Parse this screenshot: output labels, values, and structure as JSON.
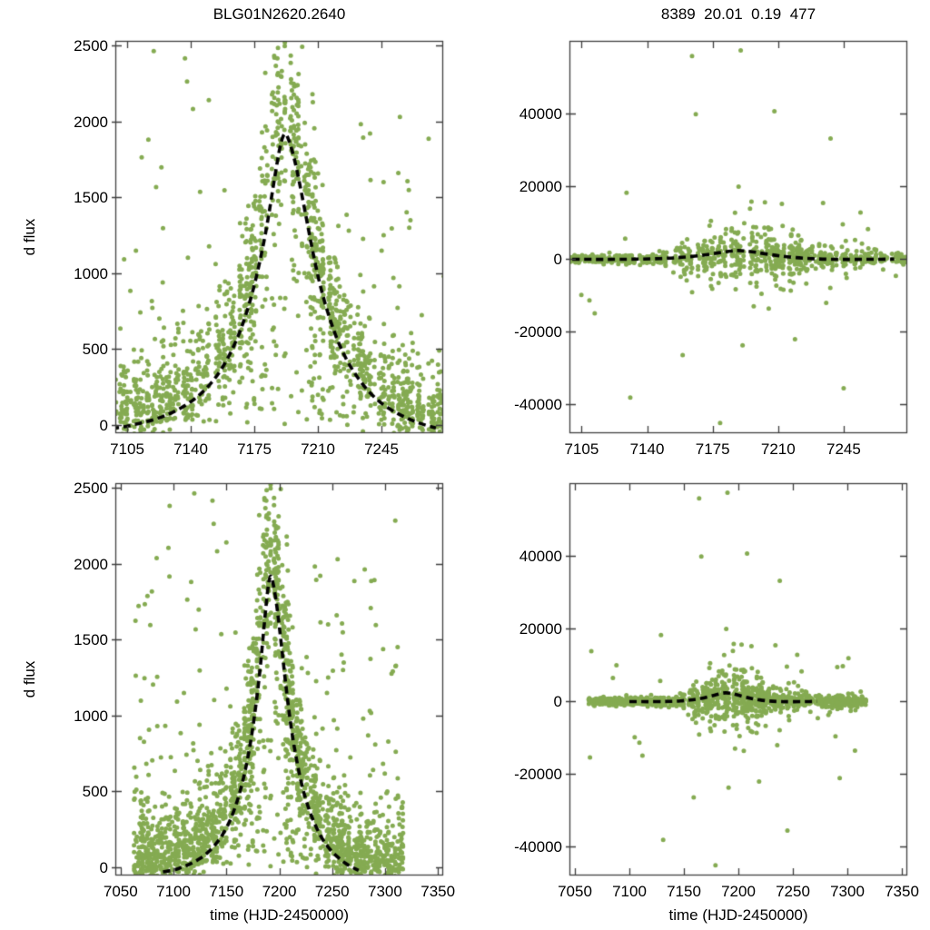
{
  "colors": {
    "background": "#ffffff",
    "point": "#85ab52",
    "curve": "#000000",
    "frame": "#3f3f3f",
    "text": "#000000"
  },
  "chart_data": {
    "type": "scatter",
    "x_axis_label": "time (HJD-2450000)",
    "y_axis_label": "d flux",
    "grid": false,
    "legend": "none",
    "nights_spec": {
      "seed": 11,
      "t_start": 7063,
      "t_end": 7317,
      "skip_prob": 0.17
    },
    "datasets": {
      "flux": {
        "model_curve": [
          [
            7060,
            -35
          ],
          [
            7075,
            -35
          ],
          [
            7090,
            -30
          ],
          [
            7100,
            -20
          ],
          [
            7110,
            5
          ],
          [
            7120,
            35
          ],
          [
            7130,
            80
          ],
          [
            7140,
            150
          ],
          [
            7148,
            230
          ],
          [
            7155,
            330
          ],
          [
            7161,
            450
          ],
          [
            7166,
            580
          ],
          [
            7170,
            710
          ],
          [
            7174,
            870
          ],
          [
            7178,
            1070
          ],
          [
            7182,
            1310
          ],
          [
            7185,
            1540
          ],
          [
            7188,
            1760
          ],
          [
            7190,
            1880
          ],
          [
            7192,
            1930
          ],
          [
            7194,
            1880
          ],
          [
            7197,
            1760
          ],
          [
            7200,
            1590
          ],
          [
            7204,
            1340
          ],
          [
            7208,
            1090
          ],
          [
            7212,
            880
          ],
          [
            7217,
            680
          ],
          [
            7222,
            520
          ],
          [
            7228,
            380
          ],
          [
            7235,
            260
          ],
          [
            7242,
            170
          ],
          [
            7250,
            100
          ],
          [
            7258,
            50
          ],
          [
            7266,
            10
          ],
          [
            7275,
            -20
          ],
          [
            7284,
            -35
          ]
        ],
        "curve_t_range": [
          7088,
          7283
        ],
        "scatter_spec": {
          "seed": 20,
          "pts_min": 5,
          "pts_max": 15,
          "peak_range": [
            7165,
            7220
          ],
          "peak_extra": 14,
          "sigma_up_base": 160,
          "sigma_up_frac": 0.18,
          "sigma_dn_base": 90,
          "sigma_dn_frac": 0.1,
          "column_base": 520,
          "column_frac": 0.95,
          "outlier_min": 550,
          "outlier_span": 2600
        }
      },
      "residual": {
        "model_curve": [
          [
            7088,
            -50
          ],
          [
            7100,
            -120
          ],
          [
            7115,
            -160
          ],
          [
            7130,
            -120
          ],
          [
            7142,
            -30
          ],
          [
            7152,
            180
          ],
          [
            7160,
            450
          ],
          [
            7168,
            850
          ],
          [
            7175,
            1400
          ],
          [
            7181,
            1900
          ],
          [
            7186,
            2250
          ],
          [
            7190,
            2300
          ],
          [
            7195,
            2050
          ],
          [
            7201,
            1550
          ],
          [
            7208,
            1000
          ],
          [
            7215,
            550
          ],
          [
            7224,
            150
          ],
          [
            7233,
            -80
          ],
          [
            7244,
            -160
          ],
          [
            7258,
            -140
          ],
          [
            7272,
            -80
          ],
          [
            7286,
            -30
          ],
          [
            7300,
            0
          ]
        ],
        "curve_t_range": [
          7089,
          7281
        ],
        "scatter_spec": {
          "seed": 77,
          "pts_min": 3,
          "pts_max": 9,
          "peak_range": [
            7165,
            7225
          ],
          "peak_extra": 7,
          "sigma_base": 520,
          "sigma_bell": 3000,
          "tail_range": [
            7150,
            7313
          ],
          "tail_mult": 2.2,
          "spike_frac": 0.035,
          "spike_sigma": 8500
        },
        "outliers": [
          [
            7112,
            -15000
          ],
          [
            7129,
            18200
          ],
          [
            7131,
            -38200
          ],
          [
            7159,
            -26500
          ],
          [
            7164,
            55800
          ],
          [
            7166,
            39800
          ],
          [
            7179,
            -45200
          ],
          [
            7190,
            57400
          ],
          [
            7191,
            -23800
          ],
          [
            7208,
            40600
          ],
          [
            7212,
            15100
          ],
          [
            7219,
            -22100
          ],
          [
            7234,
            15400
          ],
          [
            7238,
            33100
          ],
          [
            7245,
            -35600
          ],
          [
            7258,
            8200
          ],
          [
            7293,
            -21200
          ],
          [
            7301,
            11800
          ],
          [
            7307,
            -13600
          ]
        ]
      }
    },
    "panels": [
      {
        "id": "top-left",
        "dataset": "flux",
        "title": "BLG01N2620.2640",
        "ylabel": "d flux",
        "xlabel": "",
        "xlim": [
          7098.5,
          7279
        ],
        "ylim": [
          -54,
          2530
        ],
        "xticks": [
          7105,
          7140,
          7175,
          7210,
          7245
        ],
        "yticks": [
          0,
          500,
          1000,
          1500,
          2000,
          2500
        ]
      },
      {
        "id": "top-right",
        "dataset": "residual",
        "title": "8389  20.01  0.19  477",
        "ylabel": "",
        "xlabel": "",
        "xlim": [
          7098.5,
          7279
        ],
        "ylim": [
          -48000,
          60000
        ],
        "xticks": [
          7105,
          7140,
          7175,
          7210,
          7245
        ],
        "yticks": [
          -40000,
          -20000,
          0,
          20000,
          40000
        ]
      },
      {
        "id": "bottom-left",
        "dataset": "flux",
        "title": "",
        "ylabel": "d flux",
        "xlabel": "time (HJD-2450000)",
        "xlim": [
          7045,
          7355
        ],
        "ylim": [
          -54,
          2530
        ],
        "xticks": [
          7050,
          7100,
          7150,
          7200,
          7250,
          7300,
          7350
        ],
        "yticks": [
          0,
          500,
          1000,
          1500,
          2000,
          2500
        ]
      },
      {
        "id": "bottom-right",
        "dataset": "residual",
        "title": "",
        "ylabel": "",
        "xlabel": "time (HJD-2450000)",
        "xlim": [
          7045,
          7355
        ],
        "ylim": [
          -48000,
          60000
        ],
        "xticks": [
          7050,
          7100,
          7150,
          7200,
          7250,
          7300,
          7350
        ],
        "yticks": [
          -40000,
          -20000,
          0,
          20000,
          40000
        ]
      }
    ]
  }
}
